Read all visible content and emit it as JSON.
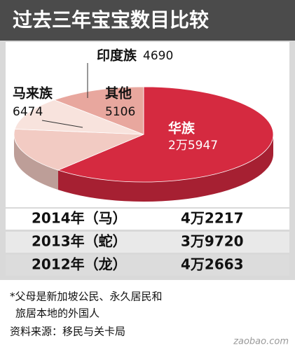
{
  "chart_data": {
    "type": "pie",
    "title": "过去三年宝宝数目比较",
    "categories": [
      "华族",
      "马来族",
      "印度族",
      "其他"
    ],
    "values": [
      25947,
      6474,
      4690,
      5106
    ],
    "value_labels": [
      "2万5947",
      "6474",
      "4690",
      "5106"
    ],
    "colors": [
      "#d52a40",
      "#f2cbc3",
      "#f8e3dd",
      "#e8a79e"
    ]
  },
  "table": {
    "rows": [
      [
        "2014年（马）",
        "4万2217"
      ],
      [
        "2013年（蛇）",
        "3万9720"
      ],
      [
        "2012年（龙）",
        "4万2663"
      ]
    ]
  },
  "notes": [
    "*父母是新加坡公民、永久居民和",
    "旅居本地的外国人",
    "资料来源：移民与关卡局"
  ],
  "watermark": "zaobao.com"
}
